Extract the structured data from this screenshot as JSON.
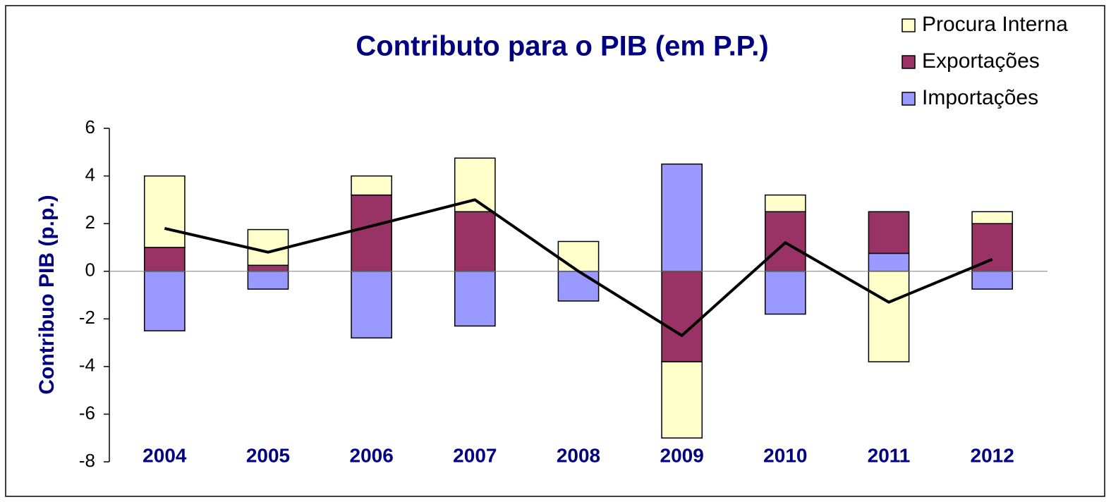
{
  "chart_data": {
    "type": "bar",
    "stacked": true,
    "title": "Contributo para o PIB (em P.P.)",
    "y_label": "Contribuo PIB (p.p.)",
    "categories": [
      "2004",
      "2005",
      "2006",
      "2007",
      "2008",
      "2009",
      "2010",
      "2011",
      "2012"
    ],
    "series": [
      {
        "name": "Procura Interna",
        "color": "#ffffcc",
        "values": [
          3.0,
          1.5,
          0.8,
          2.25,
          1.25,
          -3.2,
          0.7,
          -3.8,
          0.5
        ]
      },
      {
        "name": "Exportações",
        "color": "#993366",
        "values": [
          1.0,
          0.25,
          3.2,
          2.5,
          0,
          -3.8,
          2.5,
          1.75,
          2.0
        ]
      },
      {
        "name": "Importações",
        "color": "#9999ff",
        "values": [
          -2.5,
          -0.75,
          -2.8,
          -2.3,
          -1.25,
          4.5,
          -1.8,
          0.75,
          -0.75
        ]
      }
    ],
    "line": {
      "color": "#000000",
      "values": [
        1.8,
        0.8,
        1.9,
        3.0,
        0.0,
        -2.7,
        1.2,
        -1.3,
        0.5
      ]
    },
    "ylim": [
      -8,
      6
    ],
    "yticks": [
      -8,
      -6,
      -4,
      -2,
      0,
      2,
      4,
      6
    ],
    "legend": "top-right"
  }
}
